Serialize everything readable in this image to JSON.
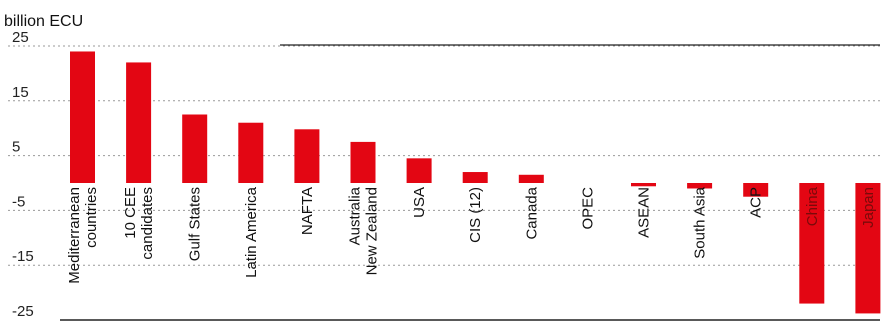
{
  "chart_data": {
    "type": "bar",
    "unit_label": "billion ECU",
    "ylim": [
      -25,
      25
    ],
    "y_ticks": [
      25,
      15,
      5,
      -5,
      -15,
      -25
    ],
    "y_tick_labels": [
      "25",
      "15",
      "5",
      "-5",
      "-15",
      "-25"
    ],
    "grid": "dashed horizontal",
    "categories": [
      [
        "Mediterranean",
        "countries"
      ],
      [
        "10 CEE",
        "candidates"
      ],
      [
        "Gulf States"
      ],
      [
        "Latin America"
      ],
      [
        "NAFTA"
      ],
      [
        "Australia",
        "New Zealand"
      ],
      [
        "USA"
      ],
      [
        "CIS (12)"
      ],
      [
        "Canada"
      ],
      [
        "OPEC"
      ],
      [
        "ASEAN"
      ],
      [
        "South Asia"
      ],
      [
        "ACP"
      ],
      [
        "China"
      ],
      [
        "Japan"
      ]
    ],
    "values": [
      24,
      22,
      12.5,
      11,
      9.8,
      7.5,
      4.5,
      2,
      1.5,
      0,
      -0.6,
      -1,
      -2.5,
      -22,
      -23.8
    ],
    "bar_color": "#e30613"
  }
}
